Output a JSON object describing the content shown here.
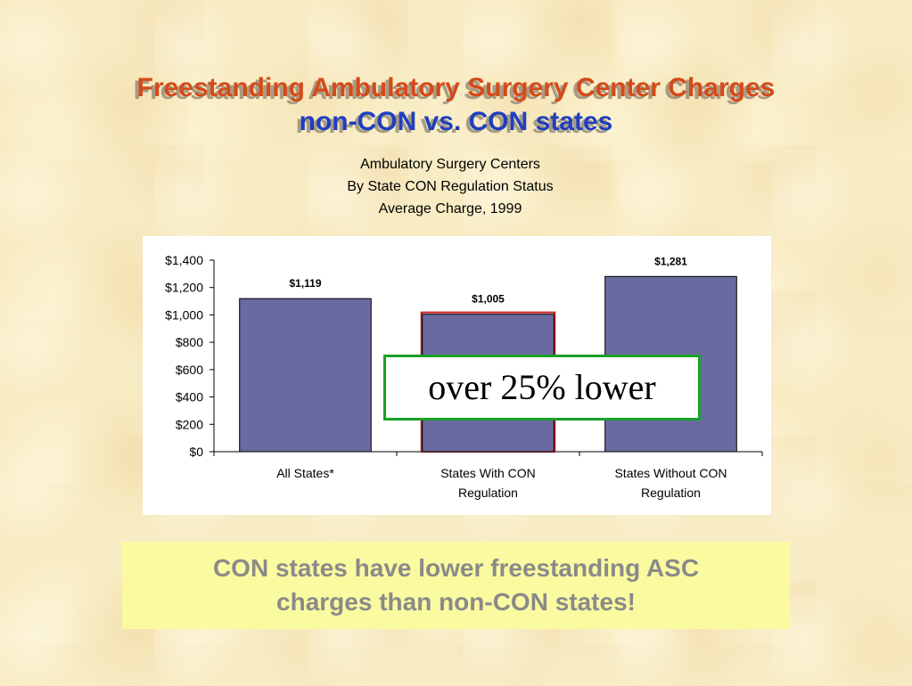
{
  "slide": {
    "title_line1": "Freestanding Ambulatory Surgery Center Charges",
    "title_line2": "non-CON vs. CON states",
    "callout": "over 25% lower",
    "note_line1": "CON states have lower freestanding ASC",
    "note_line2": "charges than non-CON states!"
  },
  "chart_data": {
    "type": "bar",
    "title": [
      "Ambulatory Surgery Centers",
      "By State CON Regulation Status",
      "Average Charge, 1999"
    ],
    "categories": [
      [
        "All States*"
      ],
      [
        "States With CON",
        "Regulation"
      ],
      [
        "States Without CON",
        "Regulation"
      ]
    ],
    "values": [
      1119,
      1005,
      1281
    ],
    "data_labels": [
      "$1,119",
      "$1,005",
      "$1,281"
    ],
    "ylim": [
      0,
      1400
    ],
    "yticks": [
      0,
      200,
      400,
      600,
      800,
      1000,
      1200,
      1400
    ],
    "ytick_labels": [
      "$0",
      "$200",
      "$400",
      "$600",
      "$800",
      "$1,000",
      "$1,200",
      "$1,400"
    ],
    "bar_color": "#6a6aa0",
    "highlight_index": 1,
    "highlight_color": "#cc2020",
    "grid": false,
    "legend": "none"
  }
}
